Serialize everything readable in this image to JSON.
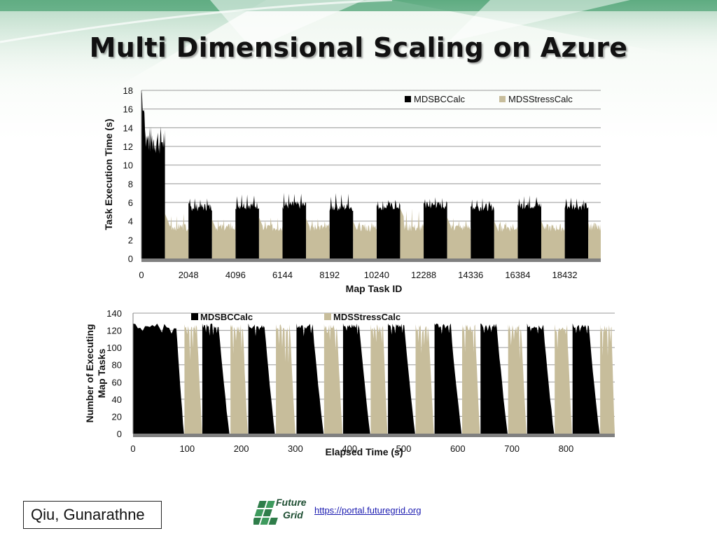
{
  "title": "Multi Dimensional Scaling on Azure",
  "author": "Qiu, Gunarathne",
  "logo": {
    "line1": "Future",
    "line2": "Grid",
    "icon": "futuregrid-grid-logo"
  },
  "link": "https://portal.futuregrid.org",
  "colors": {
    "mdsbc": "#000000",
    "mdsstress": "#c7bd9b",
    "banner": "#2e8b57",
    "axis_band": "#808080"
  },
  "chart_data": [
    {
      "type": "bar",
      "title": "",
      "xlabel": "Map Task ID",
      "ylabel": "Task Execution Time (s)",
      "xlim": [
        0,
        20000
      ],
      "ylim": [
        0,
        18
      ],
      "yticks": [
        "0",
        "2",
        "4",
        "6",
        "8",
        "10",
        "12",
        "14",
        "16",
        "18"
      ],
      "xticks": [
        "0",
        "2048",
        "4096",
        "6144",
        "8192",
        "10240",
        "12288",
        "14336",
        "16384",
        "18432"
      ],
      "grid": true,
      "legend": "top-right",
      "series": [
        {
          "name": "MDSBCCalc",
          "segments": [
            {
              "start": 0,
              "end": 1024,
              "value": 12,
              "peak": 18
            },
            {
              "start": 2048,
              "end": 3072,
              "value": 5.5,
              "peak": 6.7
            },
            {
              "start": 4096,
              "end": 5120,
              "value": 5.7,
              "peak": 7.0
            },
            {
              "start": 6144,
              "end": 7168,
              "value": 5.7,
              "peak": 7.2
            },
            {
              "start": 8192,
              "end": 9216,
              "value": 5.5,
              "peak": 7.0
            },
            {
              "start": 10240,
              "end": 11264,
              "value": 5.6,
              "peak": 6.5
            },
            {
              "start": 12288,
              "end": 13312,
              "value": 5.7,
              "peak": 6.6
            },
            {
              "start": 14336,
              "end": 15360,
              "value": 5.5,
              "peak": 6.5
            },
            {
              "start": 16384,
              "end": 17408,
              "value": 5.7,
              "peak": 6.8
            },
            {
              "start": 18432,
              "end": 19456,
              "value": 5.6,
              "peak": 6.6
            }
          ]
        },
        {
          "name": "MDSStressCalc",
          "segments": [
            {
              "start": 1024,
              "end": 2048,
              "value": 3.4,
              "peak": 4.8
            },
            {
              "start": 3072,
              "end": 4096,
              "value": 3.3,
              "peak": 4.2
            },
            {
              "start": 5120,
              "end": 6144,
              "value": 3.3,
              "peak": 4.4
            },
            {
              "start": 7168,
              "end": 8192,
              "value": 3.3,
              "peak": 4.3
            },
            {
              "start": 9216,
              "end": 10240,
              "value": 3.3,
              "peak": 4.0
            },
            {
              "start": 11264,
              "end": 12288,
              "value": 3.3,
              "peak": 5.4
            },
            {
              "start": 13312,
              "end": 14336,
              "value": 3.3,
              "peak": 4.4
            },
            {
              "start": 15360,
              "end": 16384,
              "value": 3.3,
              "peak": 4.0
            },
            {
              "start": 17408,
              "end": 18432,
              "value": 3.3,
              "peak": 4.0
            },
            {
              "start": 19456,
              "end": 20000,
              "value": 3.4,
              "peak": 3.9
            }
          ]
        }
      ]
    },
    {
      "type": "area",
      "title": "",
      "xlabel": "Elapsed Time (s)",
      "ylabel": "Number of Executing Map Tasks",
      "xlim": [
        0,
        890
      ],
      "ylim": [
        0,
        140
      ],
      "yticks": [
        "0",
        "20",
        "40",
        "60",
        "80",
        "100",
        "120",
        "140"
      ],
      "xticks": [
        "0",
        "100",
        "200",
        "300",
        "400",
        "500",
        "600",
        "700",
        "800"
      ],
      "grid": true,
      "legend": "top",
      "series": [
        {
          "name": "MDSBCCalc",
          "pulses": [
            {
              "start": 0,
              "plateau_end": 80,
              "end": 94,
              "value": 128
            },
            {
              "start": 128,
              "plateau_end": 158,
              "end": 178,
              "value": 128
            },
            {
              "start": 213,
              "plateau_end": 243,
              "end": 262,
              "value": 128
            },
            {
              "start": 302,
              "plateau_end": 332,
              "end": 352,
              "value": 128
            },
            {
              "start": 388,
              "plateau_end": 418,
              "end": 438,
              "value": 128
            },
            {
              "start": 471,
              "plateau_end": 501,
              "end": 521,
              "value": 128
            },
            {
              "start": 557,
              "plateau_end": 587,
              "end": 607,
              "value": 128
            },
            {
              "start": 642,
              "plateau_end": 672,
              "end": 692,
              "value": 128
            },
            {
              "start": 728,
              "plateau_end": 758,
              "end": 778,
              "value": 128
            },
            {
              "start": 812,
              "plateau_end": 842,
              "end": 862,
              "value": 128
            }
          ]
        },
        {
          "name": "MDSStressCalc",
          "pulses": [
            {
              "start": 95,
              "plateau_end": 118,
              "end": 128,
              "value": 127
            },
            {
              "start": 180,
              "plateau_end": 203,
              "end": 212,
              "value": 127
            },
            {
              "start": 264,
              "plateau_end": 290,
              "end": 300,
              "value": 127
            },
            {
              "start": 353,
              "plateau_end": 377,
              "end": 387,
              "value": 127
            },
            {
              "start": 439,
              "plateau_end": 462,
              "end": 470,
              "value": 127
            },
            {
              "start": 522,
              "plateau_end": 546,
              "end": 556,
              "value": 127
            },
            {
              "start": 608,
              "plateau_end": 632,
              "end": 641,
              "value": 127
            },
            {
              "start": 693,
              "plateau_end": 717,
              "end": 727,
              "value": 127
            },
            {
              "start": 779,
              "plateau_end": 802,
              "end": 811,
              "value": 127
            },
            {
              "start": 863,
              "plateau_end": 884,
              "end": 890,
              "value": 127
            }
          ]
        }
      ]
    }
  ]
}
